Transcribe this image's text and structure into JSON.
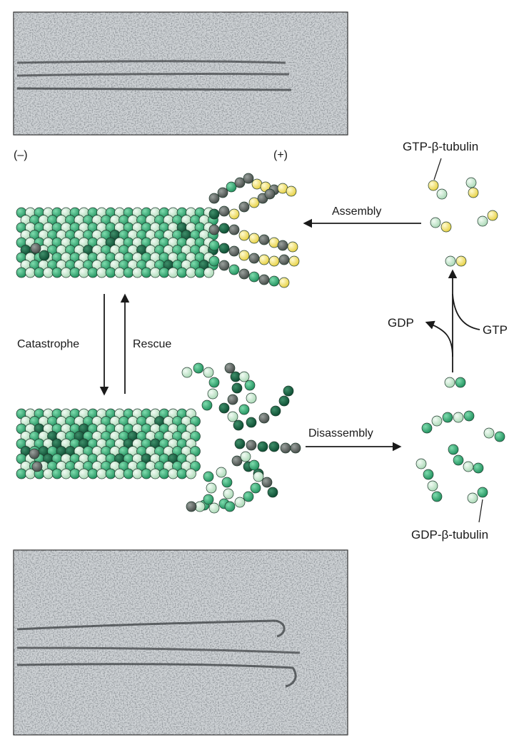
{
  "labels": {
    "minus_end": "(–)",
    "plus_end": "(+)",
    "gtp_tubulin": "GTP-β-tubulin",
    "gdp_tubulin": "GDP-β-tubulin",
    "assembly": "Assembly",
    "disassembly": "Disassembly",
    "catastrophe": "Catastrophe",
    "rescue": "Rescue",
    "gdp": "GDP",
    "gtp": "GTP"
  },
  "colors": {
    "green_light": "#bfe3c6",
    "green_mid": "#2fa872",
    "green_dark": "#0f5e3e",
    "gray_dark": "#5c635f",
    "gtp_yellow": "#f3e374",
    "micrograph_bg": "#cfd3d6"
  }
}
